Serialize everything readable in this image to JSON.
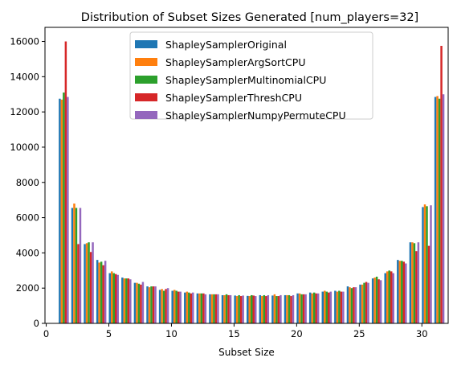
{
  "chart_data": {
    "type": "bar",
    "title": "Distribution of Subset Sizes Generated [num_players=32]",
    "xlabel": "Subset Size",
    "ylabel": "",
    "xlim": [
      -0.1,
      32.1
    ],
    "ylim": [
      0,
      16800
    ],
    "x_ticks": [
      0,
      5,
      10,
      15,
      20,
      25,
      30
    ],
    "y_ticks": [
      0,
      2000,
      4000,
      6000,
      8000,
      10000,
      12000,
      14000,
      16000
    ],
    "grid": false,
    "legend_position": "top-center",
    "bar_group_width": 0.8,
    "x": [
      1,
      2,
      3,
      4,
      5,
      6,
      7,
      8,
      9,
      10,
      11,
      12,
      13,
      14,
      15,
      16,
      17,
      18,
      19,
      20,
      21,
      22,
      23,
      24,
      25,
      26,
      27,
      28,
      29,
      30,
      31
    ],
    "series": [
      {
        "name": "ShapleySamplerOriginal",
        "color": "#1f77b4",
        "values": [
          12750,
          6550,
          4500,
          3600,
          2850,
          2600,
          2300,
          2100,
          1900,
          1850,
          1750,
          1700,
          1650,
          1600,
          1580,
          1560,
          1600,
          1580,
          1600,
          1700,
          1750,
          1800,
          1850,
          2100,
          2200,
          2550,
          2850,
          3600,
          4600,
          6600,
          12850
        ]
      },
      {
        "name": "ShapleySamplerArgSortCPU",
        "color": "#ff7f0e",
        "values": [
          12700,
          6800,
          4550,
          3450,
          2950,
          2550,
          2300,
          2050,
          1950,
          1900,
          1800,
          1700,
          1650,
          1600,
          1550,
          1550,
          1550,
          1650,
          1600,
          1700,
          1700,
          1850,
          1800,
          2050,
          2200,
          2600,
          2950,
          3550,
          4600,
          6750,
          12900
        ]
      },
      {
        "name": "ShapleySamplerMultinomialCPU",
        "color": "#2ca02c",
        "values": [
          13100,
          6550,
          4600,
          3500,
          2850,
          2550,
          2250,
          2100,
          1850,
          1850,
          1750,
          1700,
          1650,
          1650,
          1600,
          1600,
          1600,
          1550,
          1600,
          1650,
          1750,
          1800,
          1850,
          2000,
          2300,
          2650,
          3000,
          3550,
          4550,
          6650,
          12750
        ]
      },
      {
        "name": "ShapleySamplerThreshCPU",
        "color": "#d62728",
        "values": [
          16000,
          4500,
          4050,
          3300,
          2800,
          2550,
          2200,
          2100,
          1950,
          1800,
          1700,
          1700,
          1650,
          1600,
          1550,
          1580,
          1550,
          1550,
          1550,
          1650,
          1700,
          1750,
          1800,
          2050,
          2350,
          2500,
          2950,
          3500,
          4100,
          4400,
          15750
        ]
      },
      {
        "name": "ShapleySamplerNumpyPermuteCPU",
        "color": "#9467bd",
        "values": [
          12850,
          6550,
          4600,
          3550,
          2750,
          2500,
          2350,
          2100,
          2000,
          1800,
          1750,
          1650,
          1650,
          1600,
          1580,
          1550,
          1600,
          1600,
          1600,
          1650,
          1700,
          1800,
          1800,
          2050,
          2300,
          2450,
          2850,
          3400,
          4600,
          6700,
          13000
        ]
      }
    ]
  }
}
